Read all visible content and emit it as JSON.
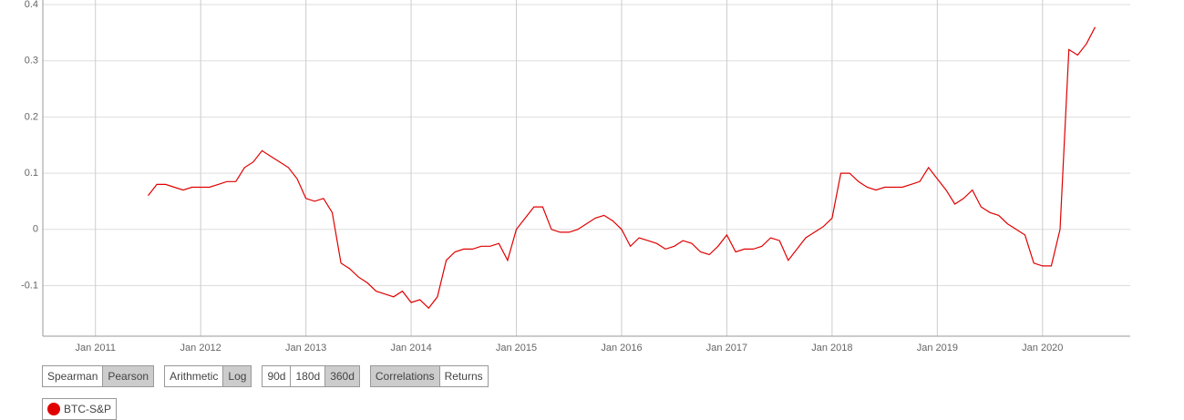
{
  "chart_data": {
    "type": "line",
    "x": [
      "2011-07",
      "2011-08",
      "2011-09",
      "2011-10",
      "2011-11",
      "2011-12",
      "2012-01",
      "2012-02",
      "2012-03",
      "2012-04",
      "2012-05",
      "2012-06",
      "2012-07",
      "2012-08",
      "2012-09",
      "2012-10",
      "2012-11",
      "2012-12",
      "2013-01",
      "2013-02",
      "2013-03",
      "2013-04",
      "2013-05",
      "2013-06",
      "2013-07",
      "2013-08",
      "2013-09",
      "2013-10",
      "2013-11",
      "2013-12",
      "2014-01",
      "2014-02",
      "2014-03",
      "2014-04",
      "2014-05",
      "2014-06",
      "2014-07",
      "2014-08",
      "2014-09",
      "2014-10",
      "2014-11",
      "2014-12",
      "2015-01",
      "2015-02",
      "2015-03",
      "2015-04",
      "2015-05",
      "2015-06",
      "2015-07",
      "2015-08",
      "2015-09",
      "2015-10",
      "2015-11",
      "2015-12",
      "2016-01",
      "2016-02",
      "2016-03",
      "2016-04",
      "2016-05",
      "2016-06",
      "2016-07",
      "2016-08",
      "2016-09",
      "2016-10",
      "2016-11",
      "2016-12",
      "2017-01",
      "2017-02",
      "2017-03",
      "2017-04",
      "2017-05",
      "2017-06",
      "2017-07",
      "2017-08",
      "2017-09",
      "2017-10",
      "2017-11",
      "2017-12",
      "2018-01",
      "2018-02",
      "2018-03",
      "2018-04",
      "2018-05",
      "2018-06",
      "2018-07",
      "2018-08",
      "2018-09",
      "2018-10",
      "2018-11",
      "2018-12",
      "2019-01",
      "2019-02",
      "2019-03",
      "2019-04",
      "2019-05",
      "2019-06",
      "2019-07",
      "2019-08",
      "2019-09",
      "2019-10",
      "2019-11",
      "2019-12",
      "2020-01",
      "2020-02",
      "2020-03",
      "2020-04",
      "2020-05",
      "2020-06",
      "2020-07"
    ],
    "series": [
      {
        "name": "BTC-S&P",
        "color": "#e00000",
        "values": [
          0.06,
          0.08,
          0.08,
          0.075,
          0.07,
          0.075,
          0.075,
          0.075,
          0.08,
          0.085,
          0.085,
          0.11,
          0.12,
          0.14,
          0.13,
          0.12,
          0.11,
          0.09,
          0.055,
          0.05,
          0.055,
          0.03,
          -0.06,
          -0.07,
          -0.085,
          -0.095,
          -0.11,
          -0.115,
          -0.12,
          -0.11,
          -0.13,
          -0.125,
          -0.14,
          -0.12,
          -0.055,
          -0.04,
          -0.035,
          -0.035,
          -0.03,
          -0.03,
          -0.025,
          -0.055,
          0.0,
          0.02,
          0.04,
          0.04,
          0.0,
          -0.005,
          -0.005,
          0.0,
          0.01,
          0.02,
          0.025,
          0.015,
          0.0,
          -0.03,
          -0.015,
          -0.02,
          -0.025,
          -0.035,
          -0.03,
          -0.02,
          -0.025,
          -0.04,
          -0.045,
          -0.03,
          -0.01,
          -0.04,
          -0.035,
          -0.035,
          -0.03,
          -0.015,
          -0.02,
          -0.055,
          -0.035,
          -0.015,
          -0.005,
          0.005,
          0.02,
          0.1,
          0.1,
          0.085,
          0.075,
          0.07,
          0.075,
          0.075,
          0.075,
          0.08,
          0.085,
          0.11,
          0.09,
          0.07,
          0.045,
          0.055,
          0.07,
          0.04,
          0.03,
          0.025,
          0.01,
          0.0,
          -0.01,
          -0.06,
          -0.065,
          -0.065,
          0.0,
          0.32,
          0.31,
          0.33,
          0.36
        ]
      }
    ],
    "xlim": [
      "2010-07",
      "2020-11"
    ],
    "xticks": [
      {
        "value": "2011-01",
        "label": "Jan 2011"
      },
      {
        "value": "2012-01",
        "label": "Jan 2012"
      },
      {
        "value": "2013-01",
        "label": "Jan 2013"
      },
      {
        "value": "2014-01",
        "label": "Jan 2014"
      },
      {
        "value": "2015-01",
        "label": "Jan 2015"
      },
      {
        "value": "2016-01",
        "label": "Jan 2016"
      },
      {
        "value": "2017-01",
        "label": "Jan 2017"
      },
      {
        "value": "2018-01",
        "label": "Jan 2018"
      },
      {
        "value": "2019-01",
        "label": "Jan 2019"
      },
      {
        "value": "2020-01",
        "label": "Jan 2020"
      }
    ],
    "ylim": [
      -0.19,
      0.4
    ],
    "yticks": [
      -0.1,
      0,
      0.1,
      0.2,
      0.3,
      0.4
    ],
    "grid": true
  },
  "controls": [
    {
      "options": [
        "Spearman",
        "Pearson"
      ],
      "selected": 1
    },
    {
      "options": [
        "Arithmetic",
        "Log"
      ],
      "selected": 1
    },
    {
      "options": [
        "90d",
        "180d",
        "360d"
      ],
      "selected": 2
    },
    {
      "options": [
        "Correlations",
        "Returns"
      ],
      "selected": 0
    }
  ]
}
